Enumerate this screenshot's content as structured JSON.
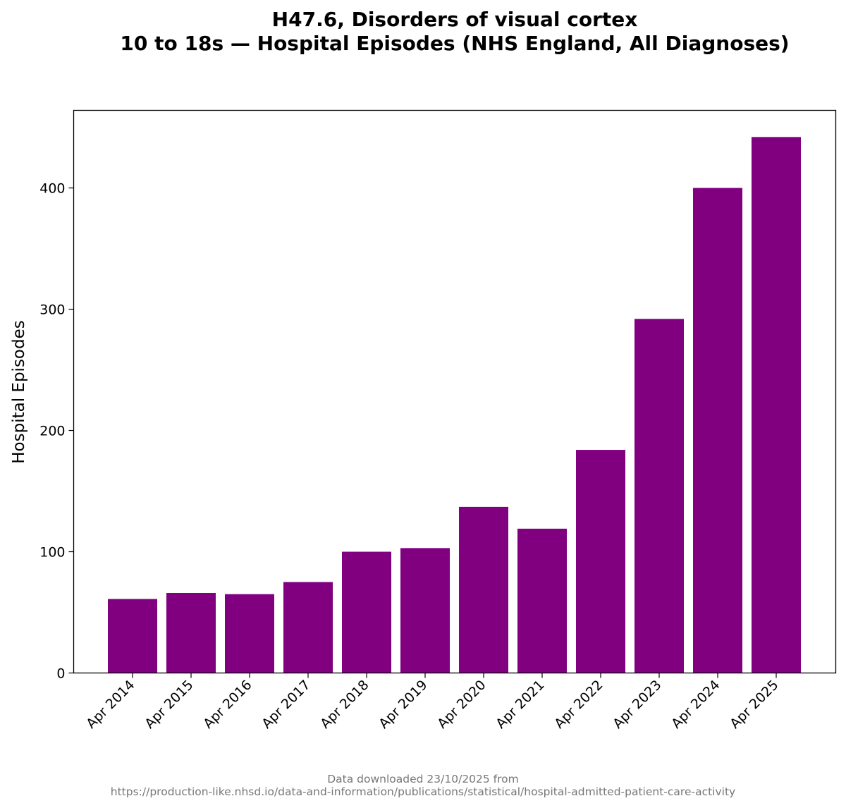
{
  "colors": {
    "bar": "#800080",
    "axis": "#000000",
    "footer": "#777777"
  },
  "chart_data": {
    "type": "bar",
    "title_lines": [
      "H47.6, Disorders of visual cortex",
      "10 to 18s — Hospital Episodes (NHS England, All Diagnoses)"
    ],
    "xlabel": "",
    "ylabel": "Hospital Episodes",
    "categories": [
      "Apr 2014",
      "Apr 2015",
      "Apr 2016",
      "Apr 2017",
      "Apr 2018",
      "Apr 2019",
      "Apr 2020",
      "Apr 2021",
      "Apr 2022",
      "Apr 2023",
      "Apr 2024",
      "Apr 2025"
    ],
    "values": [
      61,
      66,
      65,
      75,
      100,
      103,
      137,
      119,
      184,
      292,
      400,
      442
    ],
    "yticks": [
      0,
      100,
      200,
      300,
      400
    ],
    "ylim": [
      0,
      464
    ],
    "grid": false
  },
  "footer": {
    "line1": "Data downloaded 23/10/2025 from",
    "line2": "https://production-like.nhsd.io/data-and-information/publications/statistical/hospital-admitted-patient-care-activity"
  }
}
